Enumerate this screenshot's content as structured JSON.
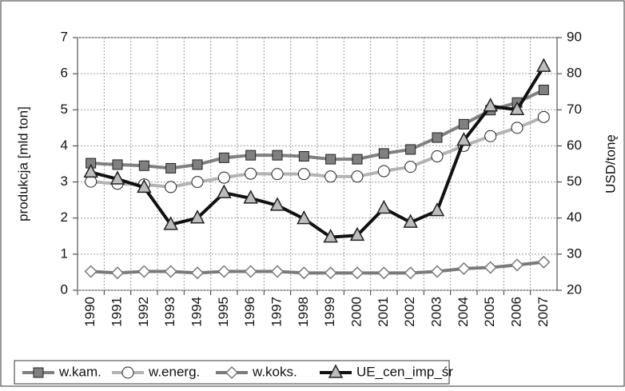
{
  "chart_data": {
    "type": "line",
    "y_label": "produkcja [mld ton]",
    "y2_label": "USD/tonę",
    "categories": [
      "1990",
      "1991",
      "1992",
      "1993",
      "1994",
      "1995",
      "1996",
      "1997",
      "1998",
      "1999",
      "2000",
      "2001",
      "2002",
      "2003",
      "2004",
      "2005",
      "2006",
      "2007"
    ],
    "ylim": [
      0,
      7
    ],
    "yticks": [
      0,
      1,
      2,
      3,
      4,
      5,
      6,
      7
    ],
    "y2lim": [
      20,
      90
    ],
    "y2ticks": [
      20,
      30,
      40,
      50,
      60,
      70,
      80,
      90
    ],
    "grid": true,
    "legend": "bottom",
    "series": [
      {
        "name": "w.kam.",
        "color": "#808080",
        "marker": "square",
        "marker_fill": "#808080",
        "values": [
          3.52,
          3.48,
          3.45,
          3.38,
          3.48,
          3.67,
          3.74,
          3.74,
          3.71,
          3.63,
          3.63,
          3.79,
          3.9,
          4.23,
          4.6,
          4.99,
          5.2,
          5.55
        ]
      },
      {
        "name": "w.energ.",
        "color": "#b3b3b3",
        "marker": "circle",
        "marker_fill": "#ffffff",
        "values": [
          3.01,
          2.95,
          2.93,
          2.86,
          3.0,
          3.12,
          3.23,
          3.22,
          3.22,
          3.15,
          3.15,
          3.3,
          3.42,
          3.71,
          4.0,
          4.27,
          4.5,
          4.8
        ]
      },
      {
        "name": "w.koks.",
        "color": "#7a7a7a",
        "marker": "diamond",
        "marker_fill": "#ffffff",
        "values": [
          0.52,
          0.48,
          0.52,
          0.52,
          0.48,
          0.52,
          0.52,
          0.52,
          0.48,
          0.48,
          0.48,
          0.48,
          0.48,
          0.52,
          0.6,
          0.63,
          0.7,
          0.78
        ]
      },
      {
        "name": "UE_cen_imp_śr",
        "color": "#111111",
        "marker": "triangle",
        "marker_fill": "#bdbdbd",
        "axis": "y2",
        "values": [
          52.7,
          50.8,
          48.5,
          38.2,
          40,
          47,
          45.5,
          43.5,
          39.8,
          34.7,
          35.2,
          42.7,
          38.8,
          42,
          61.5,
          71,
          70,
          82
        ]
      }
    ]
  }
}
